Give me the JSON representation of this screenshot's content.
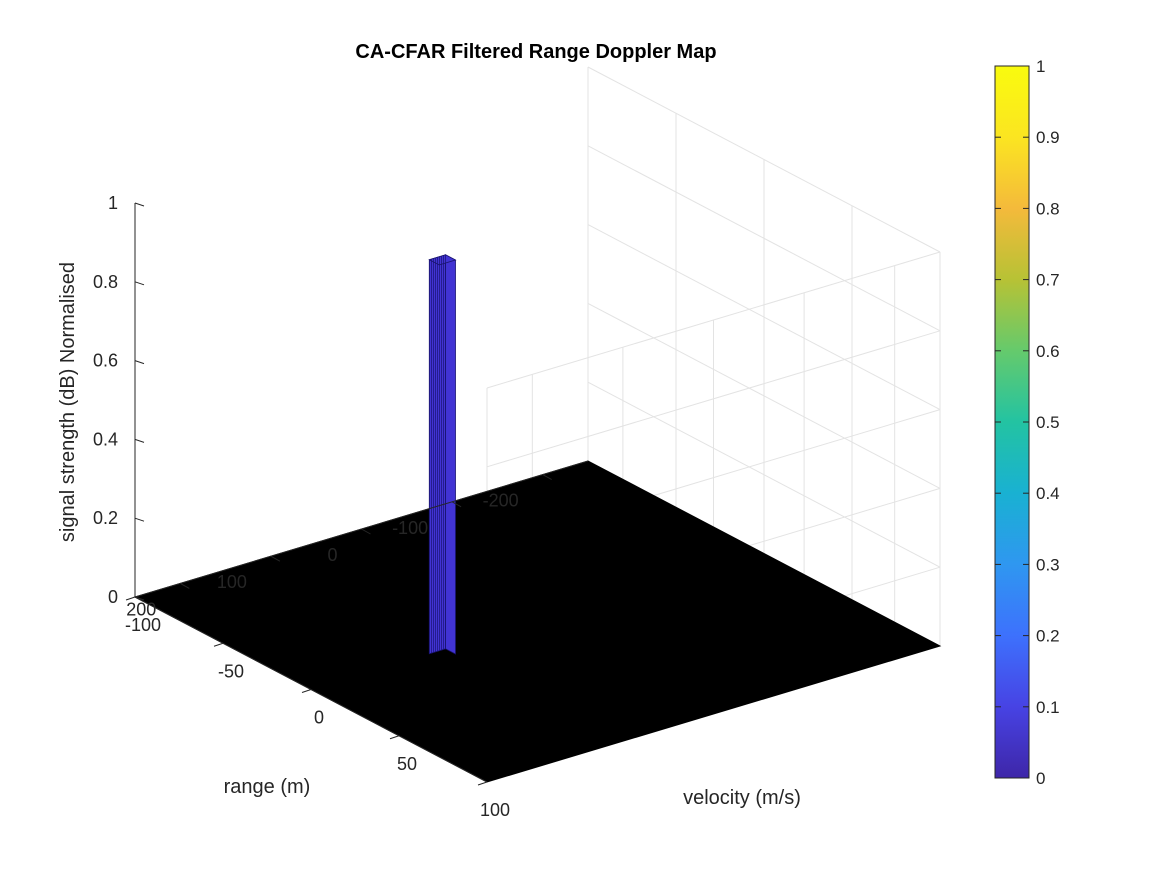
{
  "chart_data": {
    "type": "surface",
    "title": "CA-CFAR Filtered Range Doppler Map",
    "xlabel": "velocity (m/s)",
    "ylabel": "range (m)",
    "zlabel": "signal strength (dB) Normalised",
    "x_ticks": [
      "-100",
      "-50",
      "0",
      "50",
      "100"
    ],
    "y_ticks": [
      "-200",
      "-100",
      "0",
      "100",
      "200"
    ],
    "z_ticks": [
      "0",
      "0.2",
      "0.4",
      "0.6",
      "0.8",
      "1"
    ],
    "xlim": [
      -100,
      100
    ],
    "ylim": [
      -250,
      250
    ],
    "zlim": [
      0,
      1
    ],
    "grid": true,
    "colormap": "parula",
    "colorbar": {
      "ticks": [
        "0",
        "0.1",
        "0.2",
        "0.3",
        "0.4",
        "0.5",
        "0.6",
        "0.7",
        "0.8",
        "0.9",
        "1"
      ],
      "range": [
        0,
        1
      ],
      "colors": [
        "#3e26a8",
        "#4743e4",
        "#3d71fd",
        "#2f97f0",
        "#19b1d2",
        "#23c3a2",
        "#65ca6c",
        "#b7c235",
        "#f4ba3b",
        "#fbe521",
        "#f9fb0e"
      ]
    },
    "floor_value": 0,
    "floor_color": "#000000",
    "peak": {
      "velocity": 2.6,
      "range": 110,
      "value": 1
    },
    "peak_color": "#4133d3"
  }
}
